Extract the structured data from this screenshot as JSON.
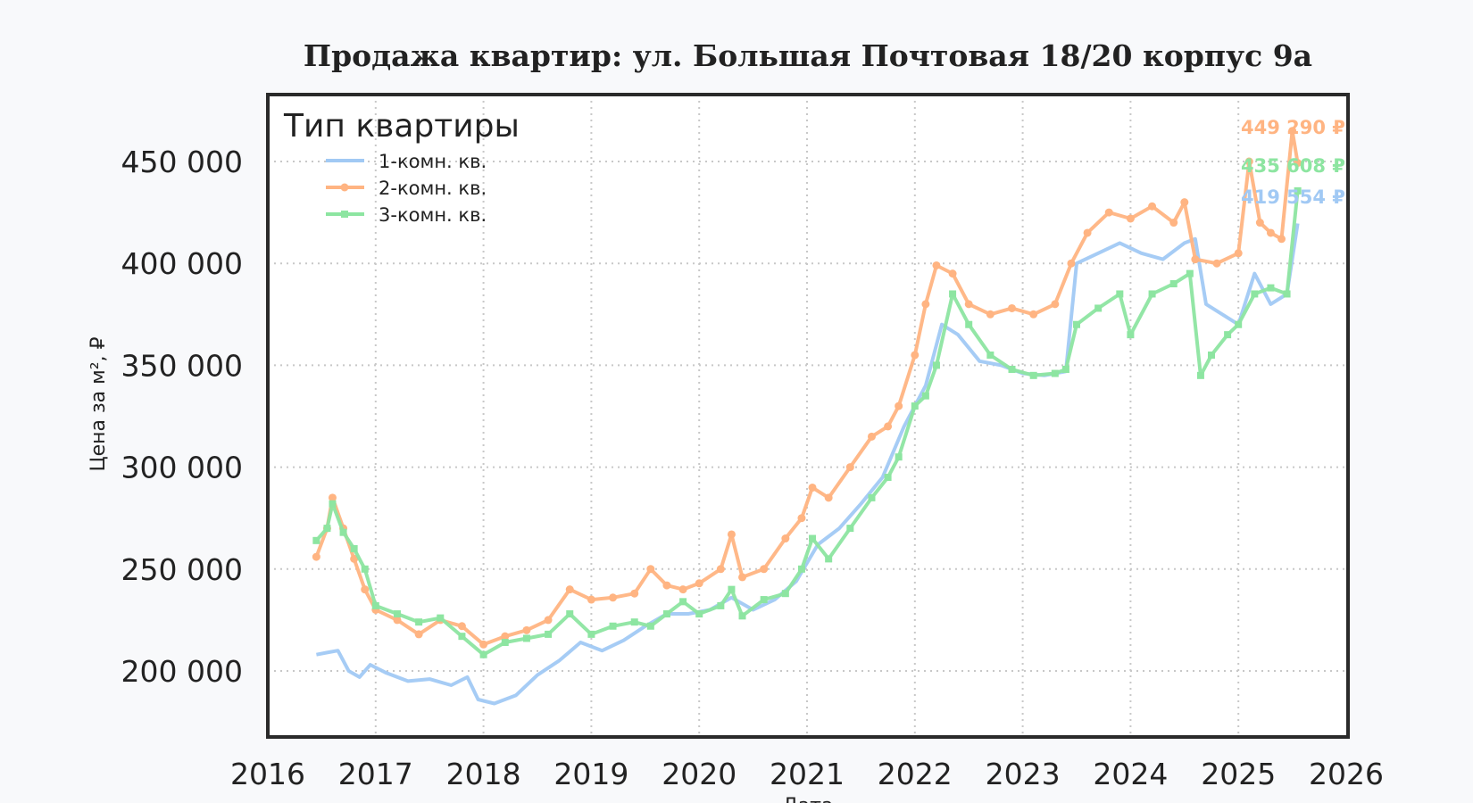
{
  "chart_data": {
    "type": "line",
    "title": "Продажа квартир: ул. Большая Почтовая 18/20 корпус 9а",
    "xlabel": "Дата",
    "ylabel": "Цена за м², ₽",
    "xlim": [
      2016,
      2026
    ],
    "ylim": [
      170000,
      480000
    ],
    "x_ticks": [
      "2016",
      "2017",
      "2018",
      "2019",
      "2020",
      "2021",
      "2022",
      "2023",
      "2024",
      "2025",
      "2026"
    ],
    "y_ticks": [
      "200 000",
      "250 000",
      "300 000",
      "350 000",
      "400 000",
      "450 000"
    ],
    "y_tick_values": [
      200000,
      250000,
      300000,
      350000,
      400000,
      450000
    ],
    "grid": true,
    "legend": {
      "title": "Тип квартиры",
      "position": "upper left",
      "entries": [
        "1-комн. кв.",
        "2-комн. кв.",
        "3-комн. кв."
      ]
    },
    "series": [
      {
        "name": "1-комн. кв.",
        "color": "#a1c9f4",
        "marker": "none",
        "end_label": "419 554 ₽",
        "end_value": 419554,
        "x": [
          2016.45,
          2016.55,
          2016.65,
          2016.75,
          2016.85,
          2016.95,
          2017.1,
          2017.3,
          2017.5,
          2017.7,
          2017.85,
          2017.95,
          2018.1,
          2018.3,
          2018.5,
          2018.7,
          2018.9,
          2019.1,
          2019.3,
          2019.5,
          2019.7,
          2019.9,
          2020.1,
          2020.3,
          2020.5,
          2020.7,
          2020.9,
          2021.1,
          2021.3,
          2021.5,
          2021.7,
          2021.9,
          2022.1,
          2022.25,
          2022.4,
          2022.6,
          2022.8,
          2023.0,
          2023.2,
          2023.4,
          2023.5,
          2023.7,
          2023.9,
          2024.1,
          2024.3,
          2024.5,
          2024.6,
          2024.7,
          2024.85,
          2025.0,
          2025.15,
          2025.3,
          2025.45,
          2025.55
        ],
        "y": [
          208000,
          209000,
          210000,
          200000,
          197000,
          203000,
          199000,
          195000,
          196000,
          193000,
          197000,
          186000,
          184000,
          188000,
          198000,
          205000,
          214000,
          210000,
          215000,
          222000,
          228000,
          228000,
          230000,
          236000,
          230000,
          235000,
          244000,
          262000,
          270000,
          282000,
          295000,
          320000,
          340000,
          370000,
          365000,
          352000,
          350000,
          346000,
          345000,
          347000,
          400000,
          405000,
          410000,
          405000,
          402000,
          410000,
          412000,
          380000,
          375000,
          370000,
          395000,
          380000,
          385000,
          419554
        ]
      },
      {
        "name": "2-комн. кв.",
        "color": "#ffb482",
        "marker": "circle",
        "end_label": "449 290 ₽",
        "end_value": 449290,
        "x": [
          2016.45,
          2016.55,
          2016.6,
          2016.7,
          2016.8,
          2016.9,
          2017.0,
          2017.2,
          2017.4,
          2017.6,
          2017.8,
          2018.0,
          2018.2,
          2018.4,
          2018.6,
          2018.8,
          2019.0,
          2019.2,
          2019.4,
          2019.55,
          2019.7,
          2019.85,
          2020.0,
          2020.2,
          2020.3,
          2020.4,
          2020.6,
          2020.8,
          2020.95,
          2021.05,
          2021.2,
          2021.4,
          2021.6,
          2021.75,
          2021.85,
          2022.0,
          2022.1,
          2022.2,
          2022.35,
          2022.5,
          2022.7,
          2022.9,
          2023.1,
          2023.3,
          2023.45,
          2023.6,
          2023.8,
          2024.0,
          2024.2,
          2024.4,
          2024.5,
          2024.6,
          2024.8,
          2025.0,
          2025.1,
          2025.2,
          2025.3,
          2025.4,
          2025.5,
          2025.55
        ],
        "y": [
          256000,
          270000,
          285000,
          270000,
          255000,
          240000,
          230000,
          225000,
          218000,
          225000,
          222000,
          213000,
          217000,
          220000,
          225000,
          240000,
          235000,
          236000,
          238000,
          250000,
          242000,
          240000,
          243000,
          250000,
          267000,
          246000,
          250000,
          265000,
          275000,
          290000,
          285000,
          300000,
          315000,
          320000,
          330000,
          355000,
          380000,
          399000,
          395000,
          380000,
          375000,
          378000,
          375000,
          380000,
          400000,
          415000,
          425000,
          422000,
          428000,
          420000,
          430000,
          402000,
          400000,
          405000,
          450000,
          420000,
          415000,
          412000,
          465000,
          449290
        ]
      },
      {
        "name": "3-комн. кв.",
        "color": "#8de5a1",
        "marker": "x",
        "end_label": "435 608 ₽",
        "end_value": 435608,
        "x": [
          2016.45,
          2016.55,
          2016.6,
          2016.7,
          2016.8,
          2016.9,
          2017.0,
          2017.2,
          2017.4,
          2017.6,
          2017.8,
          2018.0,
          2018.2,
          2018.4,
          2018.6,
          2018.8,
          2019.0,
          2019.2,
          2019.4,
          2019.55,
          2019.7,
          2019.85,
          2020.0,
          2020.2,
          2020.3,
          2020.4,
          2020.6,
          2020.8,
          2020.95,
          2021.05,
          2021.2,
          2021.4,
          2021.6,
          2021.75,
          2021.85,
          2022.0,
          2022.1,
          2022.2,
          2022.35,
          2022.5,
          2022.7,
          2022.9,
          2023.1,
          2023.3,
          2023.4,
          2023.5,
          2023.7,
          2023.9,
          2024.0,
          2024.2,
          2024.4,
          2024.55,
          2024.65,
          2024.75,
          2024.9,
          2025.0,
          2025.15,
          2025.3,
          2025.45,
          2025.55
        ],
        "y": [
          264000,
          270000,
          282000,
          268000,
          260000,
          250000,
          232000,
          228000,
          224000,
          226000,
          217000,
          208000,
          214000,
          216000,
          218000,
          228000,
          218000,
          222000,
          224000,
          222000,
          228000,
          234000,
          228000,
          232000,
          240000,
          227000,
          235000,
          238000,
          250000,
          265000,
          255000,
          270000,
          285000,
          295000,
          305000,
          330000,
          335000,
          350000,
          385000,
          370000,
          355000,
          348000,
          345000,
          346000,
          348000,
          370000,
          378000,
          385000,
          365000,
          385000,
          390000,
          395000,
          345000,
          355000,
          365000,
          370000,
          385000,
          388000,
          385000,
          435608
        ]
      }
    ]
  }
}
